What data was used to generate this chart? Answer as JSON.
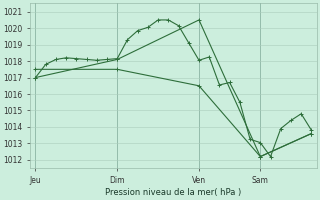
{
  "xlabel": "Pression niveau de la mer( hPa )",
  "bg_color": "#cceedd",
  "grid_color": "#aaccbb",
  "line_color": "#2d6e3a",
  "ylim": [
    1011.5,
    1021.5
  ],
  "yticks": [
    1012,
    1013,
    1014,
    1015,
    1016,
    1017,
    1018,
    1019,
    1020,
    1021
  ],
  "xlim": [
    0,
    28
  ],
  "day_labels": [
    "Jeu",
    "Dim",
    "Ven",
    "Sam"
  ],
  "day_positions": [
    0.5,
    8.5,
    16.5,
    22.5
  ],
  "vline_positions": [
    0.5,
    8.5,
    16.5,
    22.5
  ],
  "series1_x": [
    0.5,
    1.5,
    2.5,
    3.5,
    4.5,
    5.5,
    6.5,
    7.5,
    8.5,
    9.5,
    10.5,
    11.5,
    12.5,
    13.5,
    14.5,
    15.5,
    16.5,
    17.5,
    18.5,
    19.5,
    20.5,
    21.5,
    22.5,
    23.5,
    24.5,
    25.5,
    26.5,
    27.5
  ],
  "series1_y": [
    1017.0,
    1017.8,
    1018.1,
    1018.2,
    1018.15,
    1018.1,
    1018.05,
    1018.1,
    1018.15,
    1019.3,
    1019.85,
    1020.05,
    1020.5,
    1020.5,
    1020.15,
    1019.1,
    1018.05,
    1018.25,
    1016.55,
    1016.7,
    1015.5,
    1013.25,
    1013.05,
    1012.2,
    1013.9,
    1014.4,
    1014.8,
    1013.8
  ],
  "series2_x": [
    0.5,
    8.5,
    16.5,
    22.5,
    27.5
  ],
  "series2_y": [
    1017.0,
    1018.1,
    1020.5,
    1012.2,
    1013.6
  ],
  "series3_x": [
    0.5,
    8.5,
    16.5,
    22.5,
    27.5
  ],
  "series3_y": [
    1017.5,
    1017.5,
    1016.5,
    1012.2,
    1013.6
  ]
}
